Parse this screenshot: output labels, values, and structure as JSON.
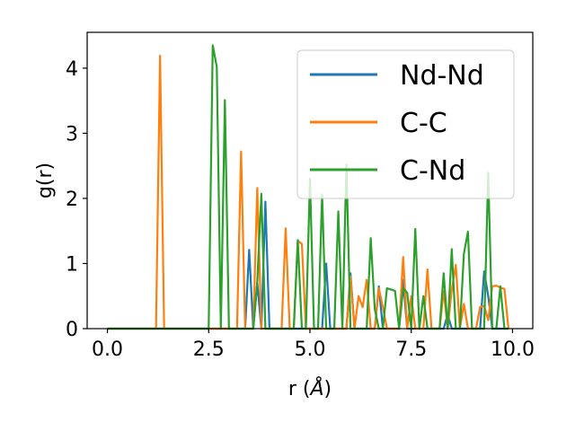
{
  "chart_data": {
    "type": "line",
    "xlabel": "r (",
    "xlabel_unit": "Å",
    "xlabel_close": ")",
    "ylabel": "g(r)",
    "xlim": [
      -0.5,
      10.5
    ],
    "ylim": [
      0,
      4.55
    ],
    "xticks": [
      0.0,
      2.5,
      5.0,
      7.5,
      10.0
    ],
    "xtick_labels": [
      "0.0",
      "2.5",
      "5.0",
      "7.5",
      "10.0"
    ],
    "yticks": [
      0,
      1,
      2,
      3,
      4
    ],
    "ytick_labels": [
      "0",
      "1",
      "2",
      "3",
      "4"
    ],
    "grid": false,
    "legend": "top-right",
    "x": [
      0.0,
      0.1,
      0.2,
      0.3,
      0.4,
      0.5,
      0.6,
      0.7,
      0.8,
      0.9,
      1.0,
      1.1,
      1.2,
      1.3,
      1.4,
      1.5,
      1.6,
      1.7,
      1.8,
      1.9,
      2.0,
      2.1,
      2.2,
      2.3,
      2.4,
      2.5,
      2.6,
      2.7,
      2.8,
      2.9,
      3.0,
      3.1,
      3.2,
      3.3,
      3.4,
      3.5,
      3.6,
      3.7,
      3.8,
      3.9,
      4.0,
      4.1,
      4.2,
      4.3,
      4.4,
      4.5,
      4.6,
      4.7,
      4.8,
      4.9,
      5.0,
      5.1,
      5.2,
      5.3,
      5.4,
      5.5,
      5.6,
      5.7,
      5.8,
      5.9,
      6.0,
      6.1,
      6.2,
      6.3,
      6.4,
      6.5,
      6.6,
      6.7,
      6.8,
      6.9,
      7.0,
      7.1,
      7.2,
      7.3,
      7.4,
      7.5,
      7.6,
      7.7,
      7.8,
      7.9,
      8.0,
      8.1,
      8.2,
      8.3,
      8.4,
      8.5,
      8.6,
      8.7,
      8.8,
      8.9,
      9.0,
      9.1,
      9.2,
      9.3,
      9.4,
      9.5,
      9.6,
      9.7,
      9.8,
      9.9
    ],
    "series": [
      {
        "name": "Nd-Nd",
        "color": "#1f77b4",
        "values": [
          0,
          0,
          0,
          0,
          0,
          0,
          0,
          0,
          0,
          0,
          0,
          0,
          0,
          0,
          0,
          0,
          0,
          0,
          0,
          0,
          0,
          0,
          0,
          0,
          0,
          0,
          0,
          0,
          0,
          0,
          0,
          0,
          0,
          0,
          0,
          1.21,
          0,
          0.7,
          0,
          1.95,
          0,
          0,
          0,
          0,
          0,
          0,
          0,
          0,
          0,
          0,
          0,
          0,
          0,
          0,
          1.0,
          0,
          0,
          0,
          0,
          0,
          0.85,
          0,
          0,
          0,
          0,
          0,
          0,
          0.65,
          0,
          0,
          0,
          0,
          0,
          0.75,
          0,
          0,
          0,
          0,
          0,
          0,
          0,
          0,
          0,
          0,
          0.22,
          0,
          0,
          0,
          0,
          0,
          0,
          0,
          0,
          0.88,
          0.5,
          0,
          0,
          0,
          0,
          0
        ]
      },
      {
        "name": "C-C",
        "color": "#ff7f0e",
        "values": [
          0,
          0,
          0,
          0,
          0,
          0,
          0,
          0,
          0,
          0,
          0,
          0,
          0,
          4.19,
          0,
          0,
          0,
          0,
          0,
          0,
          0,
          0,
          0,
          0,
          0,
          0,
          0,
          0,
          0,
          0,
          0,
          0,
          0,
          2.72,
          0,
          0,
          0,
          2.16,
          0,
          0,
          0,
          0,
          0,
          0,
          1.54,
          0,
          0,
          1.35,
          1.3,
          0,
          0,
          0,
          0,
          0,
          0,
          0,
          0,
          0,
          0,
          0,
          0.8,
          0,
          0.5,
          0.33,
          0.75,
          0,
          0,
          0.62,
          0.33,
          0,
          0,
          0,
          0,
          1.1,
          0,
          0.5,
          0,
          0,
          0,
          0.91,
          0,
          0,
          0,
          0.58,
          0,
          0.6,
          0.98,
          0,
          0.38,
          0,
          0,
          0,
          0.33,
          0.35,
          0.13,
          0.65,
          0.66,
          0.63,
          0.61,
          0
        ]
      },
      {
        "name": "C-Nd",
        "color": "#2ca02c",
        "values": [
          0,
          0,
          0,
          0,
          0,
          0,
          0,
          0,
          0,
          0,
          0,
          0,
          0,
          0,
          0,
          0,
          0,
          0,
          0,
          0,
          0,
          0,
          0,
          0,
          0,
          0,
          4.35,
          4.02,
          0,
          3.51,
          0,
          0,
          0,
          0,
          0,
          0,
          0,
          0.72,
          2.07,
          0,
          0,
          0,
          0,
          0,
          0,
          0,
          0,
          1.36,
          0,
          0,
          2.3,
          0,
          0,
          2.06,
          0,
          0,
          0,
          1.8,
          0,
          2.52,
          0,
          0,
          0,
          0,
          0,
          1.39,
          0.3,
          0,
          0,
          0.62,
          0.6,
          0.58,
          0,
          0.62,
          0.55,
          0,
          1.53,
          0,
          0.5,
          0,
          0,
          0,
          0,
          0.85,
          0,
          1.22,
          0,
          0,
          1.15,
          1.49,
          0,
          0,
          0,
          0,
          2.39,
          0,
          0,
          0.65,
          0,
          0
        ]
      }
    ]
  }
}
